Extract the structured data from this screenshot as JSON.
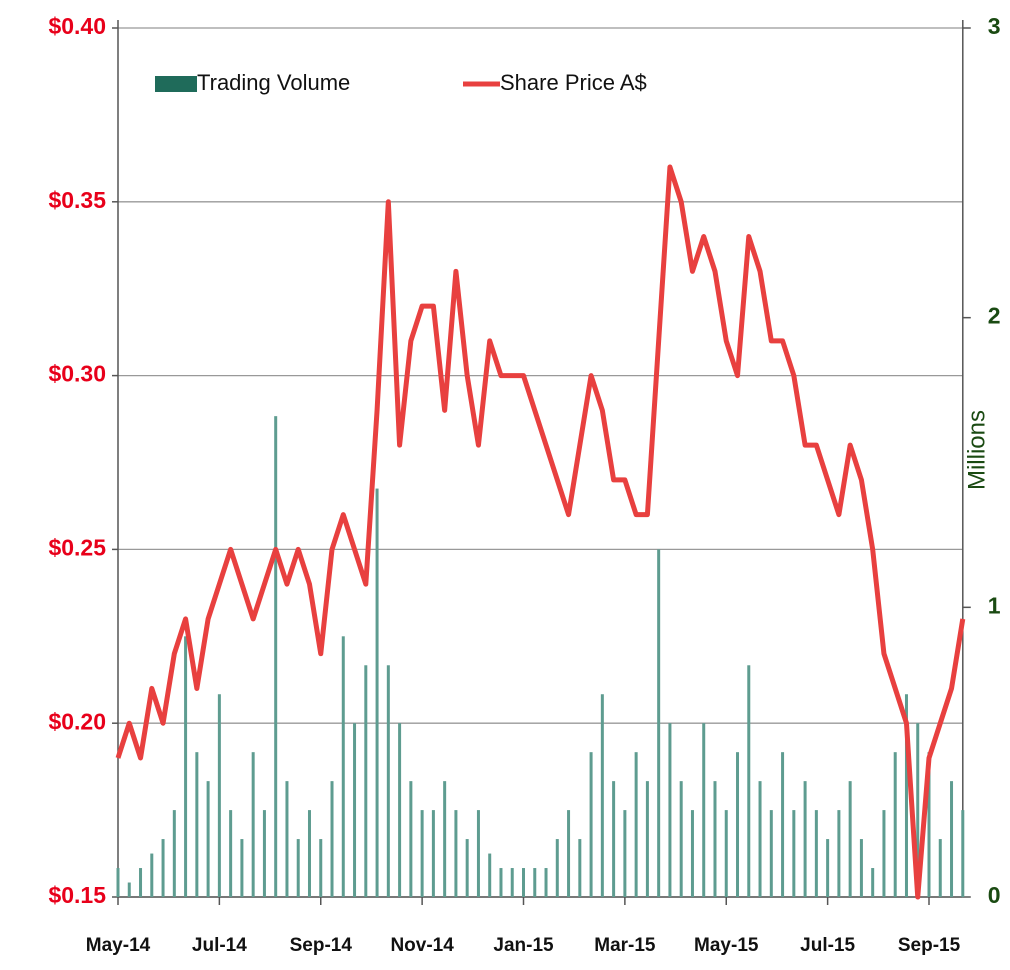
{
  "chart_data": {
    "type": "bar-line",
    "categories": [
      "May-14",
      null,
      null,
      null,
      null,
      null,
      null,
      null,
      null,
      "Jul-14",
      null,
      null,
      null,
      null,
      null,
      null,
      null,
      null,
      "Sep-14",
      null,
      null,
      null,
      null,
      null,
      null,
      null,
      null,
      "Nov-14",
      null,
      null,
      null,
      null,
      null,
      null,
      null,
      null,
      "Jan-15",
      null,
      null,
      null,
      null,
      null,
      null,
      null,
      null,
      "Mar-15",
      null,
      null,
      null,
      null,
      null,
      null,
      null,
      null,
      "May-15",
      null,
      null,
      null,
      null,
      null,
      null,
      null,
      null,
      "Jul-15",
      null,
      null,
      null,
      null,
      null,
      null,
      null,
      null,
      "Sep-15",
      null,
      null,
      null
    ],
    "series": [
      {
        "name": "Trading Volume",
        "type": "bar",
        "axis": "y2",
        "color": "#1f6b5a",
        "bar_color": "#5e9c90",
        "values": [
          0.1,
          0.05,
          0.1,
          0.15,
          0.2,
          0.3,
          0.9,
          0.5,
          0.4,
          0.7,
          0.3,
          0.2,
          0.5,
          0.3,
          1.66,
          0.4,
          0.2,
          0.3,
          0.2,
          0.4,
          0.9,
          0.6,
          0.8,
          1.41,
          0.8,
          0.6,
          0.4,
          0.3,
          0.3,
          0.4,
          0.3,
          0.2,
          0.3,
          0.15,
          0.1,
          0.1,
          0.1,
          0.1,
          0.1,
          0.2,
          0.3,
          0.2,
          0.5,
          0.7,
          0.4,
          0.3,
          0.5,
          0.4,
          1.2,
          0.6,
          0.4,
          0.3,
          0.6,
          0.4,
          0.3,
          0.5,
          0.8,
          0.4,
          0.3,
          0.5,
          0.3,
          0.4,
          0.3,
          0.2,
          0.3,
          0.4,
          0.2,
          0.1,
          0.3,
          0.5,
          0.7,
          0.6,
          0.5,
          0.2,
          0.4,
          0.3
        ]
      },
      {
        "name": "Share Price A$",
        "type": "line",
        "color": "#e8403f",
        "values": [
          0.19,
          0.2,
          0.19,
          0.21,
          0.2,
          0.22,
          0.23,
          0.21,
          0.23,
          0.24,
          0.25,
          0.24,
          0.23,
          0.24,
          0.25,
          0.24,
          0.25,
          0.24,
          0.22,
          0.25,
          0.26,
          0.25,
          0.24,
          0.29,
          0.35,
          0.28,
          0.31,
          0.32,
          0.32,
          0.29,
          0.33,
          0.3,
          0.28,
          0.31,
          0.3,
          0.3,
          0.3,
          0.29,
          0.28,
          0.27,
          0.26,
          0.28,
          0.3,
          0.29,
          0.27,
          0.27,
          0.26,
          0.26,
          0.31,
          0.36,
          0.35,
          0.33,
          0.34,
          0.33,
          0.31,
          0.3,
          0.34,
          0.33,
          0.31,
          0.31,
          0.3,
          0.28,
          0.28,
          0.27,
          0.26,
          0.28,
          0.27,
          0.25,
          0.22,
          0.21,
          0.2,
          0.15,
          0.19,
          0.2,
          0.21,
          0.23
        ]
      }
    ],
    "ylim": [
      0.15,
      0.4
    ],
    "yticks": [
      {
        "value": 0.15,
        "label": "$0.15"
      },
      {
        "value": 0.2,
        "label": "$0.20"
      },
      {
        "value": 0.25,
        "label": "$0.25"
      },
      {
        "value": 0.3,
        "label": "$0.30"
      },
      {
        "value": 0.35,
        "label": "$0.35"
      },
      {
        "value": 0.4,
        "label": "$0.40"
      }
    ],
    "y2lim": [
      0,
      3
    ],
    "y2ticks": [
      0,
      1,
      2,
      3
    ],
    "y2label": "Millions",
    "grid": true,
    "legend": "top-left"
  }
}
